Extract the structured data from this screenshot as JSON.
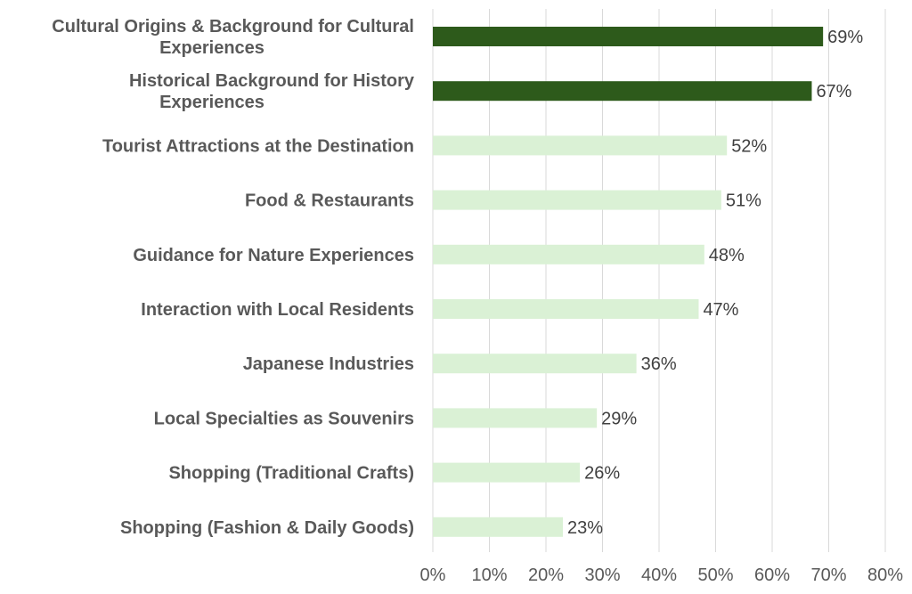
{
  "chart_data": {
    "type": "bar",
    "orientation": "horizontal",
    "categories": [
      [
        "Cultural Origins & Background for Cultural",
        "Experiences"
      ],
      [
        "Historical Background for History",
        "Experiences"
      ],
      [
        "Tourist Attractions at the Destination"
      ],
      [
        "Food & Restaurants"
      ],
      [
        "Guidance for Nature Experiences"
      ],
      [
        "Interaction with Local Residents"
      ],
      [
        "Japanese Industries"
      ],
      [
        "Local Specialties as Souvenirs"
      ],
      [
        "Shopping (Traditional Crafts)"
      ],
      [
        "Shopping (Fashion & Daily Goods)"
      ]
    ],
    "values": [
      69,
      67,
      52,
      51,
      48,
      47,
      36,
      29,
      26,
      23
    ],
    "value_labels": [
      "69%",
      "67%",
      "52%",
      "51%",
      "48%",
      "47%",
      "36%",
      "29%",
      "26%",
      "23%"
    ],
    "highlighted": [
      true,
      true,
      false,
      false,
      false,
      false,
      false,
      false,
      false,
      false
    ],
    "xlim": [
      0,
      80
    ],
    "xticks": [
      0,
      10,
      20,
      30,
      40,
      50,
      60,
      70,
      80
    ],
    "xtick_labels": [
      "0%",
      "10%",
      "20%",
      "30%",
      "40%",
      "50%",
      "60%",
      "70%",
      "80%"
    ],
    "grid": true,
    "title": "",
    "xlabel": "",
    "ylabel": ""
  },
  "colors": {
    "highlight_bar": "#2d5a1b",
    "normal_bar": "#daf1d5",
    "grid": "#d9d9d9"
  }
}
